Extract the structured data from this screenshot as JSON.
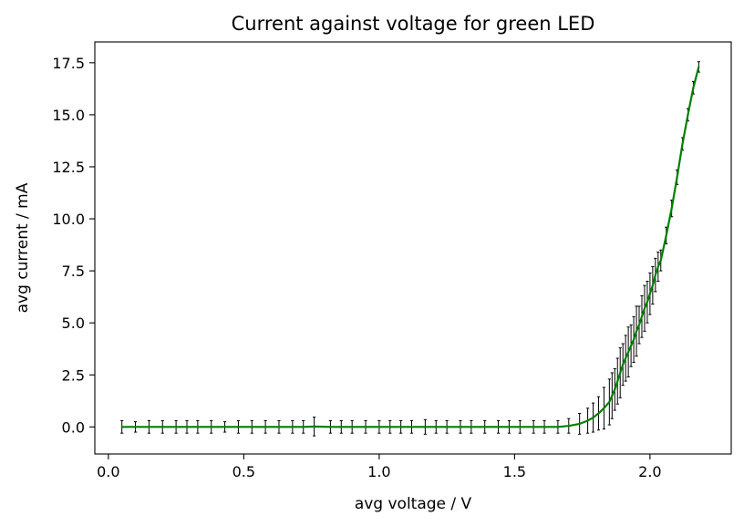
{
  "chart_data": {
    "type": "line",
    "title": "Current against voltage for green LED",
    "xlabel": "avg voltage / V",
    "ylabel": "avg current / mA",
    "xlim": [
      -0.05,
      2.3
    ],
    "ylim": [
      -1.3,
      18.5
    ],
    "xticks": [
      0.0,
      0.5,
      1.0,
      1.5,
      2.0
    ],
    "xtick_labels": [
      "0.0",
      "0.5",
      "1.0",
      "1.5",
      "2.0"
    ],
    "yticks": [
      0.0,
      2.5,
      5.0,
      7.5,
      10.0,
      12.5,
      15.0,
      17.5
    ],
    "ytick_labels": [
      "0.0",
      "2.5",
      "5.0",
      "7.5",
      "10.0",
      "12.5",
      "15.0",
      "17.5"
    ],
    "grid": false,
    "colors": {
      "line": "#008000",
      "errorbar": "#000000",
      "frame": "#000000"
    },
    "series": [
      {
        "x": [
          0.05,
          0.1,
          0.15,
          0.2,
          0.25,
          0.29,
          0.33,
          0.38,
          0.43,
          0.48,
          0.53,
          0.58,
          0.63,
          0.68,
          0.72,
          0.76,
          0.82,
          0.86,
          0.9,
          0.95,
          1.0,
          1.04,
          1.08,
          1.12,
          1.17,
          1.21,
          1.25,
          1.3,
          1.34,
          1.39,
          1.44,
          1.48,
          1.52,
          1.57,
          1.61,
          1.66,
          1.7,
          1.74,
          1.77,
          1.79,
          1.81,
          1.83,
          1.85,
          1.86,
          1.87,
          1.88,
          1.89,
          1.9,
          1.91,
          1.92,
          1.93,
          1.94,
          1.95,
          1.96,
          1.97,
          1.98,
          1.99,
          2.0,
          2.01,
          2.02,
          2.03,
          2.04,
          2.06,
          2.08,
          2.1,
          2.12,
          2.14,
          2.16,
          2.18
        ],
        "y": [
          0.0,
          0.0,
          0.0,
          0.0,
          0.0,
          0.0,
          0.0,
          0.0,
          0.0,
          0.0,
          0.0,
          0.0,
          0.0,
          0.0,
          0.0,
          0.02,
          0.0,
          0.0,
          0.0,
          0.0,
          0.0,
          0.0,
          0.0,
          0.0,
          0.0,
          0.0,
          0.0,
          0.0,
          0.0,
          0.0,
          0.0,
          0.0,
          0.0,
          0.0,
          0.0,
          0.0,
          0.05,
          0.15,
          0.3,
          0.45,
          0.65,
          0.9,
          1.2,
          1.5,
          1.8,
          2.2,
          2.6,
          3.0,
          3.3,
          3.6,
          3.9,
          4.2,
          4.6,
          4.9,
          5.3,
          5.7,
          6.0,
          6.4,
          6.8,
          7.3,
          7.7,
          8.0,
          9.2,
          10.5,
          12.0,
          13.6,
          15.0,
          16.3,
          17.3
        ],
        "yerr": [
          0.3,
          0.25,
          0.3,
          0.3,
          0.3,
          0.3,
          0.3,
          0.3,
          0.25,
          0.3,
          0.3,
          0.3,
          0.3,
          0.3,
          0.3,
          0.45,
          0.3,
          0.3,
          0.3,
          0.3,
          0.3,
          0.3,
          0.3,
          0.3,
          0.35,
          0.3,
          0.3,
          0.3,
          0.3,
          0.3,
          0.3,
          0.3,
          0.3,
          0.3,
          0.3,
          0.3,
          0.35,
          0.5,
          0.6,
          0.7,
          0.8,
          1.0,
          1.1,
          1.1,
          1.0,
          1.1,
          1.2,
          1.0,
          1.1,
          1.2,
          1.0,
          1.1,
          1.2,
          0.9,
          1.0,
          1.1,
          1.0,
          1.0,
          0.9,
          0.8,
          0.7,
          0.5,
          0.4,
          0.4,
          0.35,
          0.3,
          0.3,
          0.3,
          0.25
        ]
      }
    ]
  }
}
